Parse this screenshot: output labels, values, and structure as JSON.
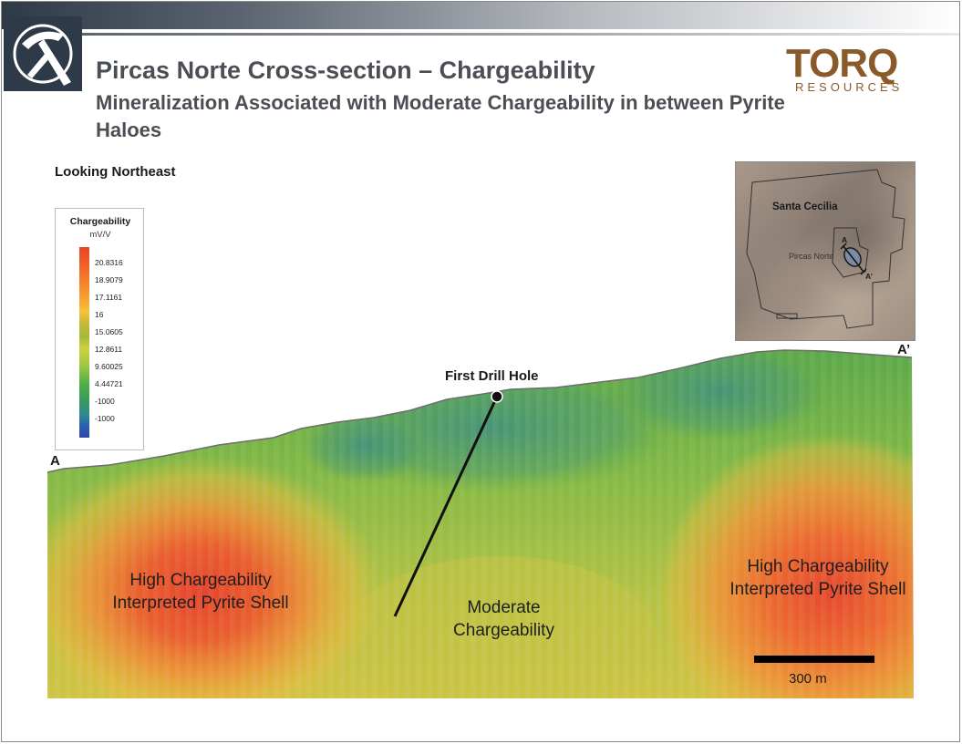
{
  "header": {
    "title": "Pircas Norte Cross-section – Chargeability",
    "subtitle": "Mineralization Associated with Moderate Chargeability in between Pyrite Haloes",
    "brand_name": "TORQ",
    "brand_sub": "RESOURCES"
  },
  "view_label": "Looking Northeast",
  "legend": {
    "title": "Chargeability",
    "unit": "mV/V",
    "items": [
      "20.8316",
      "18.9079",
      "17.1161",
      "16",
      "15.0605",
      "12.8611",
      "9.60025",
      "4.44721",
      "-1000",
      "-1000"
    ]
  },
  "section": {
    "end_left": "A",
    "end_right": "A’",
    "drill_label": "First Drill Hole",
    "left_zone": "High Chargeability Interpreted Pyrite Shell",
    "center_zone": "Moderate Chargeability",
    "right_zone": "High Chargeability Interpreted Pyrite Shell",
    "scale": "300 m"
  },
  "inset": {
    "area": "Santa Cecilia",
    "target": "Pircas Norte",
    "a": "A",
    "a_prime": "A’"
  },
  "colors": {
    "brand_brown": "#8b5a2b",
    "header_dark": "#2e3a48",
    "text_gray": "#4b4f55"
  },
  "icons": [
    "pickaxe-icon"
  ]
}
